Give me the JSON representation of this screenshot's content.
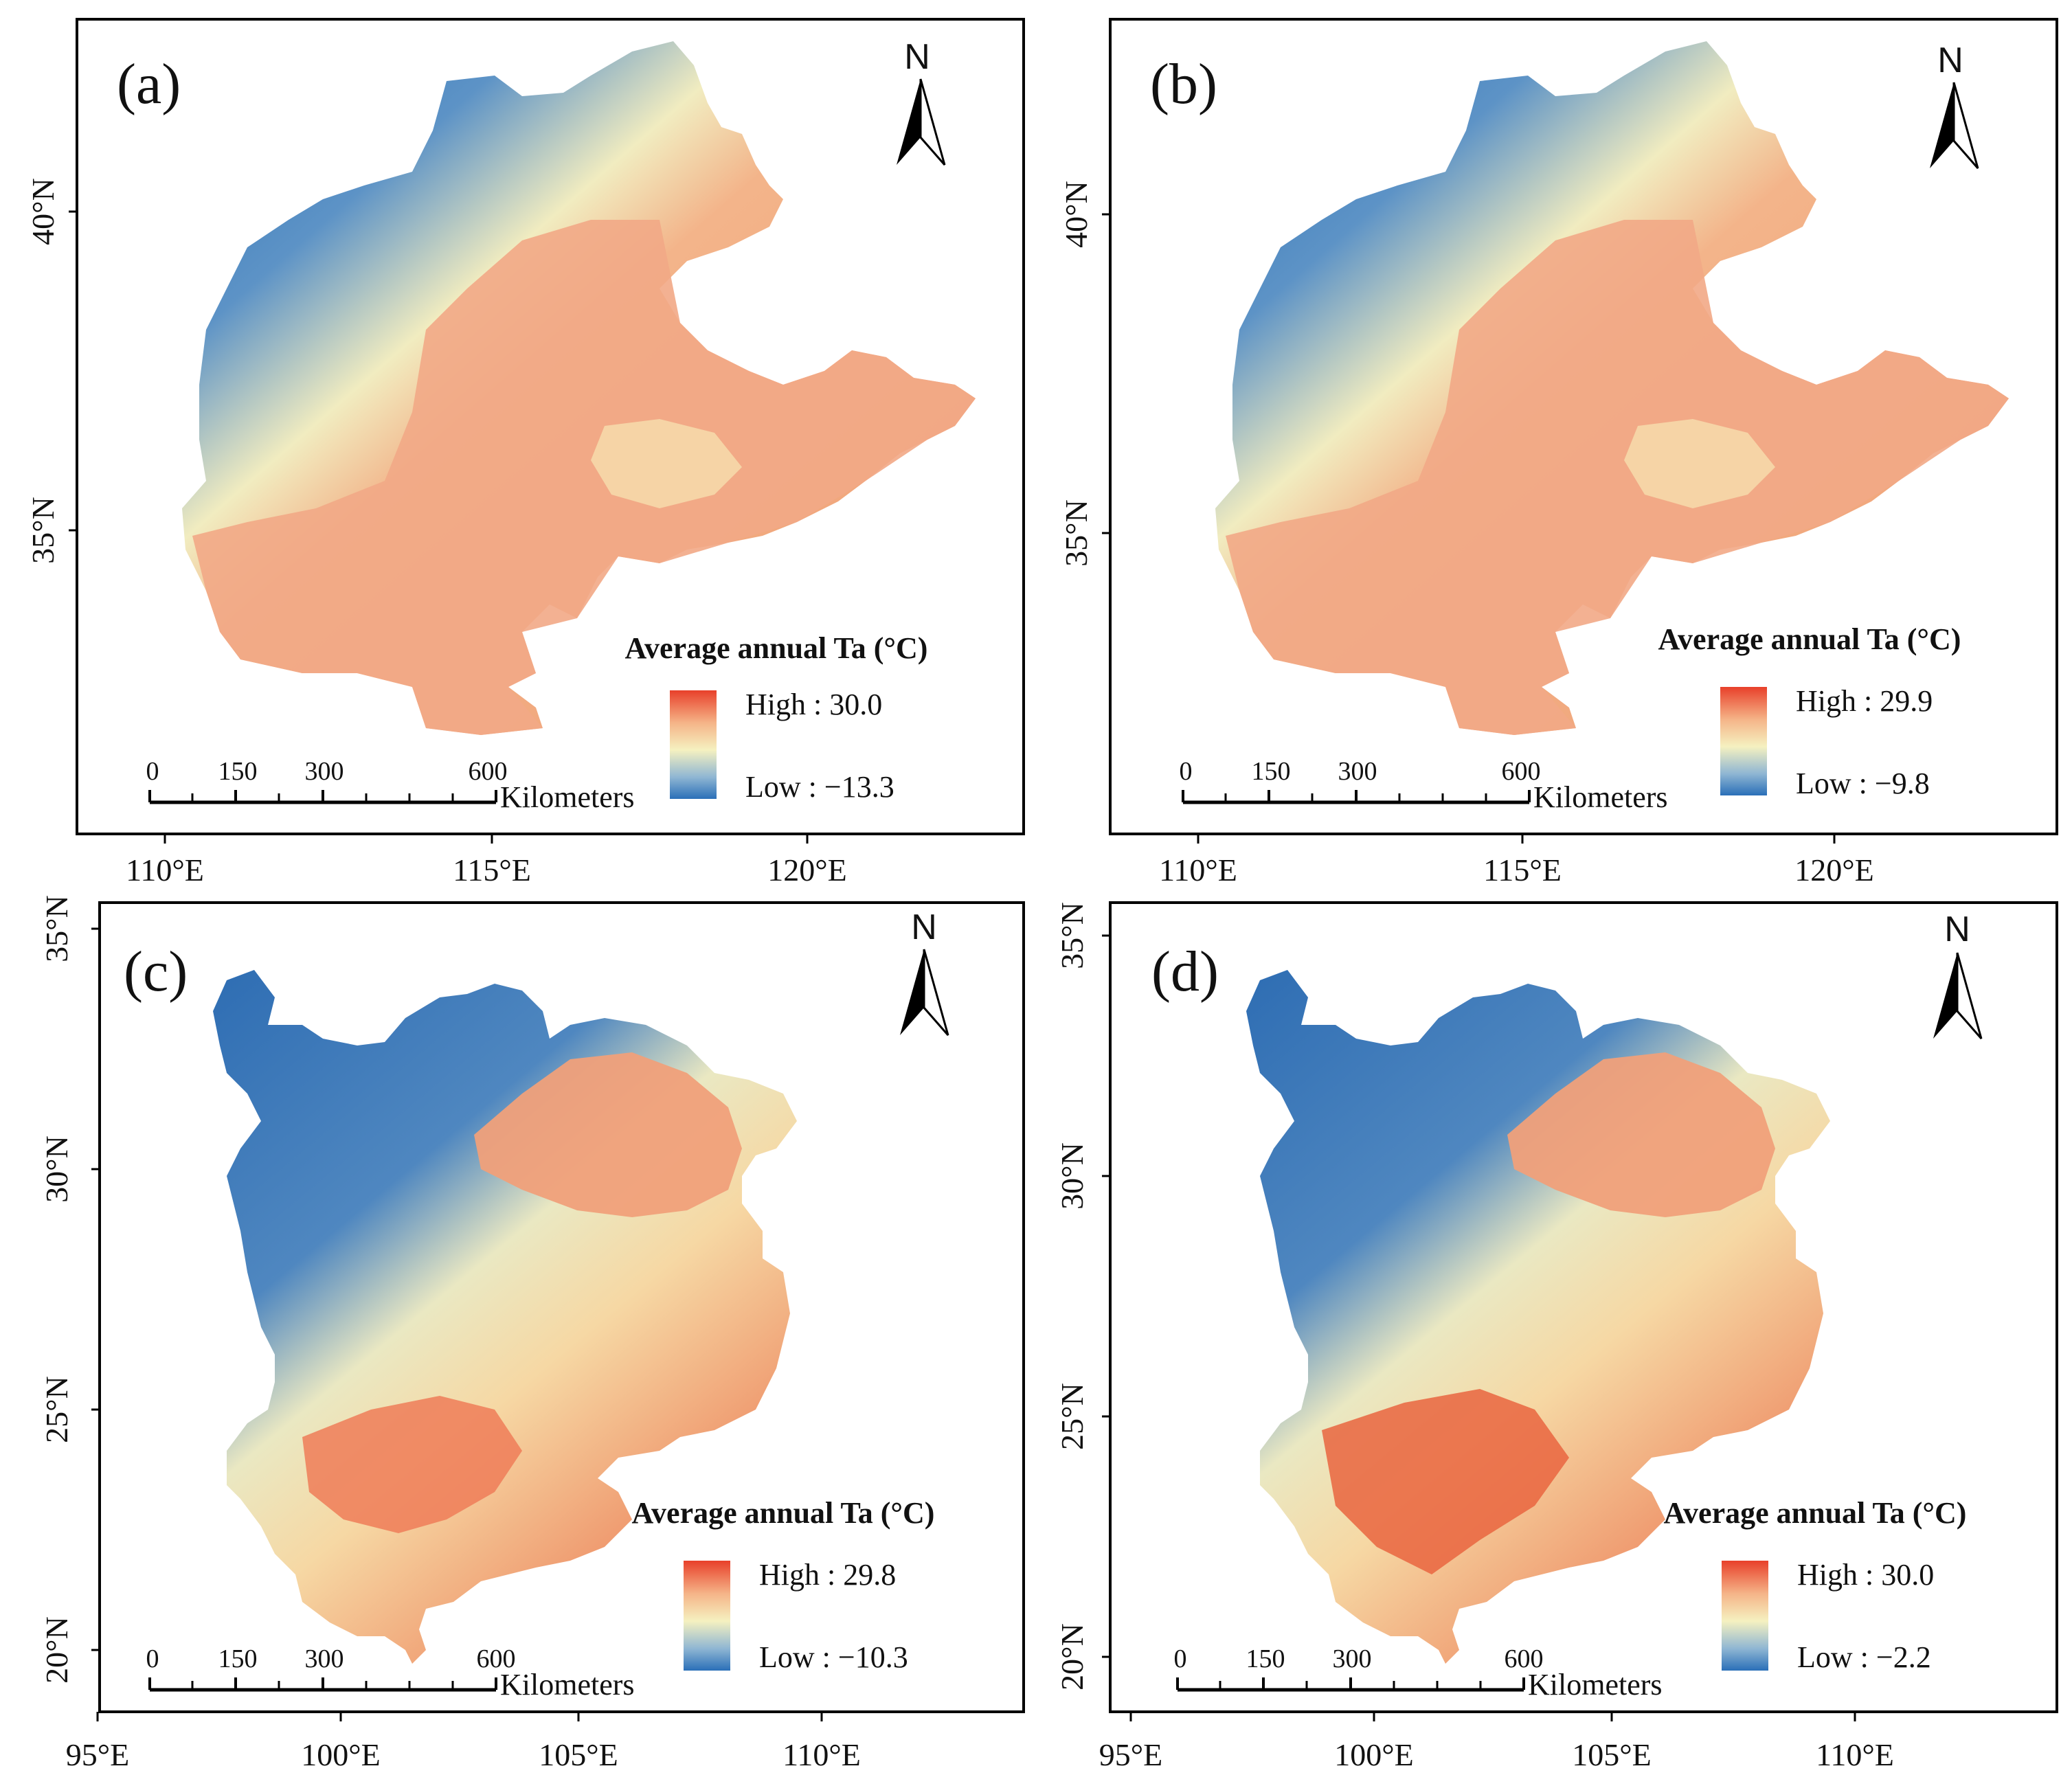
{
  "figure": {
    "panels": [
      {
        "label": "(a)",
        "north_label": "N",
        "legend": {
          "title": "Average annual Ta  (°C)",
          "high": "High : 30.0",
          "low": "Low : −13.3"
        },
        "scale": {
          "ticks": [
            "0",
            "150",
            "300",
            "600"
          ],
          "unit": "Kilometers"
        },
        "lat_ticks": [
          "40°N",
          "35°N"
        ],
        "lon_ticks": [
          "110°E",
          "115°E",
          "120°E"
        ]
      },
      {
        "label": "(b)",
        "north_label": "N",
        "legend": {
          "title": "Average annual Ta  (°C)",
          "high": "High : 29.9",
          "low": "Low : −9.8"
        },
        "scale": {
          "ticks": [
            "0",
            "150",
            "300",
            "600"
          ],
          "unit": "Kilometers"
        },
        "lat_ticks": [
          "40°N",
          "35°N"
        ],
        "lon_ticks": [
          "110°E",
          "115°E",
          "120°E"
        ]
      },
      {
        "label": "(c)",
        "north_label": "N",
        "legend": {
          "title": "Average annual Ta  (°C)",
          "high": "High : 29.8",
          "low": "Low : −10.3"
        },
        "scale": {
          "ticks": [
            "0",
            "150",
            "300",
            "600"
          ],
          "unit": "Kilometers"
        },
        "lat_ticks": [
          "35°N",
          "30°N",
          "25°N",
          "20°N"
        ],
        "lon_ticks": [
          "95°E",
          "100°E",
          "105°E",
          "110°E"
        ]
      },
      {
        "label": "(d)",
        "north_label": "N",
        "legend": {
          "title": "Average annual Ta  (°C)",
          "high": "High : 30.0",
          "low": "Low : −2.2"
        },
        "scale": {
          "ticks": [
            "0",
            "150",
            "300",
            "600"
          ],
          "unit": "Kilometers"
        },
        "lat_ticks": [
          "35°N",
          "30°N",
          "25°N",
          "20°N"
        ],
        "lon_ticks": [
          "95°E",
          "100°E",
          "105°E",
          "110°E"
        ]
      }
    ],
    "colors": {
      "high": "#e8402a",
      "mid_warm": "#f3b48a",
      "mid": "#f5f1c0",
      "cool": "#8fb6d3",
      "low": "#2a6fb8"
    },
    "icons": {
      "north_arrow": "north-arrow-icon"
    }
  }
}
